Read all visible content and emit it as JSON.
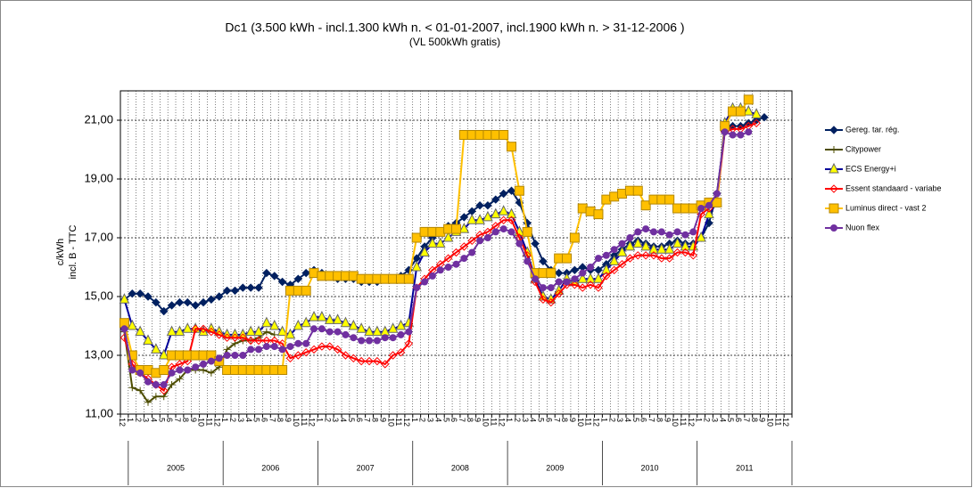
{
  "chart_data": {
    "type": "line",
    "title": "Dc1 (3.500 kWh - incl.1.300 kWh n. < 01-01-2007, incl.1900 kWh n. > 31-12-2006 )",
    "subtitle": "(VL 500kWh gratis)",
    "y_label": [
      "c/kWh",
      "incl. B - TTC"
    ],
    "categories": [
      "12",
      "1",
      "2",
      "3",
      "4",
      "5",
      "6",
      "7",
      "8",
      "9",
      "10",
      "11",
      "12",
      "1",
      "2",
      "3",
      "4",
      "5",
      "6",
      "7",
      "8",
      "9",
      "10",
      "11",
      "12",
      "1",
      "2",
      "3",
      "4",
      "5",
      "6",
      "7",
      "8",
      "9",
      "10",
      "11",
      "12",
      "1",
      "2",
      "3",
      "4",
      "5",
      "6",
      "7",
      "8",
      "9",
      "10",
      "11",
      "12",
      "1",
      "2",
      "3",
      "4",
      "5",
      "6",
      "7",
      "8",
      "9",
      "10",
      "11",
      "12",
      "1",
      "2",
      "3",
      "4",
      "5",
      "6",
      "7",
      "8",
      "9",
      "10",
      "11",
      "12",
      "1",
      "2",
      "3",
      "4",
      "5",
      "6",
      "7",
      "8",
      "9",
      "10",
      "11",
      "12"
    ],
    "years": [
      "2005",
      "2006",
      "2007",
      "2008",
      "2009",
      "2010",
      "2011"
    ],
    "ylim": [
      11,
      22
    ],
    "yticks": [
      {
        "value": 11,
        "label": "11,00"
      },
      {
        "value": 13,
        "label": "13,00"
      },
      {
        "value": 15,
        "label": "15,00"
      },
      {
        "value": 17,
        "label": "17,00"
      },
      {
        "value": 19,
        "label": "19,00"
      },
      {
        "value": 21,
        "label": "21,00"
      }
    ],
    "grid": true,
    "legend": "right",
    "series": [
      {
        "name": "Gereg. tar. rég.",
        "color": "#002060",
        "fill": "#002060",
        "marker": "diamond",
        "values": [
          14.9,
          15.1,
          15.1,
          15.0,
          14.8,
          14.5,
          14.7,
          14.8,
          14.8,
          14.7,
          14.8,
          14.9,
          15.0,
          15.2,
          15.2,
          15.3,
          15.3,
          15.3,
          15.8,
          15.7,
          15.5,
          15.4,
          15.6,
          15.8,
          15.9,
          15.8,
          15.7,
          15.6,
          15.6,
          15.6,
          15.5,
          15.5,
          15.5,
          15.6,
          15.6,
          15.7,
          15.9,
          16.3,
          16.7,
          17.0,
          17.2,
          17.4,
          17.5,
          17.7,
          17.9,
          18.1,
          18.1,
          18.3,
          18.5,
          18.6,
          18.2,
          17.5,
          16.8,
          16.2,
          15.9,
          15.8,
          15.8,
          15.9,
          16.0,
          15.9,
          15.9,
          16.1,
          16.4,
          16.6,
          16.8,
          16.9,
          16.8,
          16.7,
          16.7,
          16.8,
          16.9,
          16.8,
          16.8,
          17.0,
          17.5,
          18.5,
          20.6,
          20.8,
          20.8,
          20.9,
          21.0,
          21.1,
          null,
          null,
          null
        ]
      },
      {
        "name": "Citypower",
        "color": "#4d4d00",
        "fill": "#4d4d00",
        "marker": "plus",
        "values": [
          13.8,
          11.9,
          11.8,
          11.4,
          11.6,
          11.6,
          12.0,
          12.2,
          12.5,
          12.5,
          12.5,
          12.4,
          12.6,
          13.2,
          13.4,
          13.5,
          13.5,
          13.6,
          13.8,
          13.7,
          null,
          null,
          null,
          null,
          null,
          null,
          null,
          null,
          null,
          null,
          null,
          null,
          null,
          null,
          null,
          null,
          null,
          null,
          null,
          null,
          null,
          null,
          null,
          null,
          null,
          null,
          null,
          null,
          null,
          null,
          null,
          null,
          null,
          null,
          null,
          null,
          null,
          null,
          null,
          null,
          null,
          null,
          null,
          null,
          null,
          null,
          null,
          null,
          null,
          null,
          null,
          null,
          null,
          null,
          null,
          null,
          null,
          null,
          null,
          null,
          null,
          null,
          null,
          null,
          null
        ]
      },
      {
        "name": "ECS Energy+i",
        "color": "#000099",
        "fill": "#ffff00",
        "marker": "triangle",
        "values": [
          14.9,
          14.0,
          13.8,
          13.5,
          13.2,
          13.0,
          13.8,
          13.8,
          13.9,
          13.9,
          13.8,
          13.9,
          13.8,
          13.7,
          13.7,
          13.7,
          13.8,
          13.8,
          14.1,
          14.0,
          13.8,
          13.7,
          14.0,
          14.1,
          14.3,
          14.3,
          14.2,
          14.2,
          14.1,
          14.0,
          13.9,
          13.8,
          13.8,
          13.8,
          13.9,
          14.0,
          14.1,
          16.0,
          16.5,
          16.8,
          16.8,
          17.0,
          17.2,
          17.3,
          17.6,
          17.6,
          17.7,
          17.8,
          17.9,
          17.8,
          17.2,
          16.5,
          15.6,
          15.0,
          14.9,
          15.2,
          15.6,
          15.5,
          15.6,
          15.6,
          15.6,
          15.9,
          16.2,
          16.5,
          16.7,
          16.8,
          16.7,
          16.6,
          16.6,
          16.6,
          16.8,
          16.7,
          16.7,
          17.0,
          17.8,
          18.2,
          20.9,
          21.4,
          21.4,
          21.3,
          21.2,
          null,
          null,
          null,
          null
        ]
      },
      {
        "name": "Essent standaard - variabe",
        "color": "#ff0000",
        "fill": "none",
        "marker": "diamond",
        "values": [
          13.6,
          12.7,
          12.4,
          12.2,
          12.0,
          11.8,
          12.6,
          12.7,
          12.8,
          13.9,
          13.9,
          13.8,
          13.7,
          13.6,
          13.6,
          13.6,
          13.5,
          13.5,
          13.5,
          13.5,
          13.4,
          12.9,
          13.0,
          13.1,
          13.2,
          13.3,
          13.3,
          13.2,
          13.0,
          12.9,
          12.8,
          12.8,
          12.8,
          12.7,
          13.0,
          13.1,
          13.4,
          15.3,
          15.6,
          15.9,
          16.1,
          16.3,
          16.5,
          16.7,
          16.9,
          17.1,
          17.2,
          17.4,
          17.6,
          17.6,
          17.0,
          16.4,
          15.5,
          14.9,
          14.8,
          15.1,
          15.4,
          15.4,
          15.3,
          15.4,
          15.3,
          15.7,
          15.9,
          16.1,
          16.3,
          16.4,
          16.4,
          16.4,
          16.3,
          16.3,
          16.5,
          16.5,
          16.4,
          17.8,
          18.0,
          18.2,
          20.6,
          20.7,
          20.7,
          20.8,
          20.9,
          null,
          null,
          null,
          null
        ]
      },
      {
        "name": "Luminus direct - vast 2",
        "color": "#ffc000",
        "fill": "#ffc000",
        "marker": "square",
        "values": [
          14.1,
          13.0,
          12.5,
          12.5,
          12.4,
          12.5,
          13.0,
          13.0,
          13.0,
          13.0,
          13.0,
          13.0,
          12.8,
          12.5,
          12.5,
          12.5,
          12.5,
          12.5,
          12.5,
          12.5,
          12.5,
          15.2,
          15.2,
          15.2,
          15.8,
          15.7,
          15.7,
          15.7,
          15.7,
          15.7,
          15.6,
          15.6,
          15.6,
          15.6,
          15.6,
          15.6,
          15.6,
          17.0,
          17.2,
          17.2,
          17.2,
          17.3,
          17.3,
          20.5,
          20.5,
          20.5,
          20.5,
          20.5,
          20.5,
          20.1,
          18.6,
          17.2,
          15.8,
          15.8,
          15.8,
          16.3,
          16.3,
          17.0,
          18.0,
          17.9,
          17.8,
          18.3,
          18.4,
          18.5,
          18.6,
          18.6,
          18.1,
          18.3,
          18.3,
          18.3,
          18.0,
          18.0,
          18.0,
          18.1,
          18.2,
          18.2,
          20.8,
          21.3,
          21.3,
          21.7,
          null,
          null,
          null,
          null,
          null
        ]
      },
      {
        "name": "Nuon flex",
        "color": "#7030a0",
        "fill": "#7030a0",
        "marker": "circle",
        "values": [
          13.9,
          12.5,
          12.4,
          12.1,
          12.0,
          12.0,
          12.4,
          12.5,
          12.5,
          12.6,
          12.7,
          12.8,
          12.9,
          13.0,
          13.0,
          13.0,
          13.2,
          13.2,
          13.3,
          13.3,
          13.2,
          13.3,
          13.4,
          13.4,
          13.9,
          13.9,
          13.8,
          13.8,
          13.7,
          13.6,
          13.5,
          13.5,
          13.5,
          13.6,
          13.6,
          13.7,
          13.8,
          15.3,
          15.5,
          15.7,
          15.9,
          16.0,
          16.1,
          16.3,
          16.5,
          16.9,
          17.0,
          17.2,
          17.3,
          17.2,
          16.8,
          16.2,
          15.6,
          15.3,
          15.3,
          15.5,
          15.5,
          15.6,
          15.8,
          16.0,
          16.3,
          16.4,
          16.6,
          16.8,
          17.0,
          17.2,
          17.3,
          17.2,
          17.2,
          17.1,
          17.2,
          17.1,
          17.2,
          18.0,
          18.1,
          18.5,
          20.6,
          20.5,
          20.5,
          20.6,
          null,
          null,
          null,
          null,
          null
        ]
      }
    ]
  }
}
